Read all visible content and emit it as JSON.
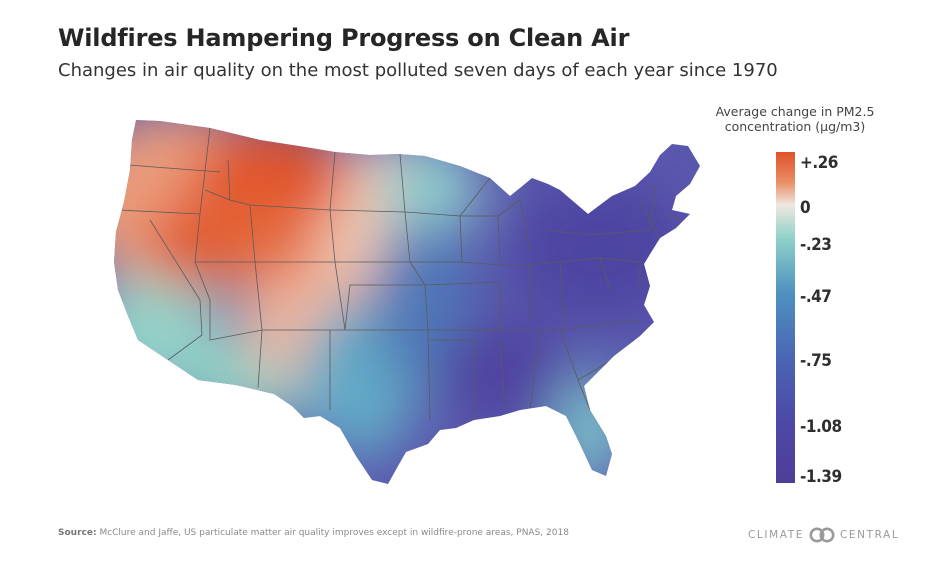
{
  "header": {
    "title": "Wildfires Hampering Progress on Clean Air",
    "subtitle": "Changes in air quality on the most polluted seven days of each year since 1970"
  },
  "legend": {
    "title_line1": "Average change in PM2.5",
    "title_line2": "concentration (μg/m3)",
    "ticks": [
      "+.26",
      "0",
      "-.23",
      "-.47",
      "-.75",
      "-1.08",
      "-1.39"
    ],
    "colors": {
      "high": "#e0522a",
      "zero": "#eee8e0",
      "mid": "#4f93c0",
      "low": "#4f3e98"
    }
  },
  "footer": {
    "source_label": "Source:",
    "source_text": "McClure and Jaffe, US particulate matter air quality improves except in wildfire-prone areas, PNAS, 2018",
    "brand_left": "CLIMATE",
    "brand_right": "CENTRAL"
  }
}
